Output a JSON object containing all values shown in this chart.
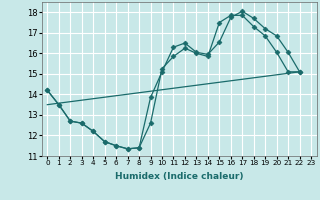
{
  "xlabel": "Humidex (Indice chaleur)",
  "bg_color": "#c8e8e8",
  "grid_color": "#ffffff",
  "line_color": "#1a6b6b",
  "xlim": [
    -0.5,
    23.5
  ],
  "ylim": [
    11,
    18.5
  ],
  "yticks": [
    11,
    12,
    13,
    14,
    15,
    16,
    17,
    18
  ],
  "xticks": [
    0,
    1,
    2,
    3,
    4,
    5,
    6,
    7,
    8,
    9,
    10,
    11,
    12,
    13,
    14,
    15,
    16,
    17,
    18,
    19,
    20,
    21,
    22,
    23
  ],
  "line1_x": [
    0,
    1,
    2,
    3,
    4,
    5,
    6,
    7,
    8,
    9,
    10,
    11,
    12,
    13,
    14,
    15,
    16,
    17,
    18,
    19,
    20,
    21,
    22
  ],
  "line1_y": [
    14.2,
    13.5,
    12.7,
    12.6,
    12.2,
    11.7,
    11.5,
    11.35,
    11.4,
    12.6,
    15.25,
    15.85,
    16.25,
    16.0,
    15.85,
    17.5,
    17.85,
    17.85,
    17.3,
    16.85,
    16.05,
    15.1,
    15.1
  ],
  "line2_x": [
    0,
    1,
    2,
    3,
    4,
    5,
    6,
    7,
    8,
    9,
    10,
    11,
    12,
    13,
    14,
    15,
    16,
    17,
    18,
    19,
    20,
    21,
    22
  ],
  "line2_y": [
    14.2,
    13.5,
    12.7,
    12.6,
    12.2,
    11.7,
    11.5,
    11.35,
    11.4,
    13.85,
    15.1,
    16.3,
    16.5,
    16.05,
    15.95,
    16.55,
    17.75,
    18.05,
    17.7,
    17.2,
    16.85,
    16.05,
    15.1
  ],
  "line3_x": [
    0,
    22
  ],
  "line3_y": [
    13.5,
    15.1
  ]
}
